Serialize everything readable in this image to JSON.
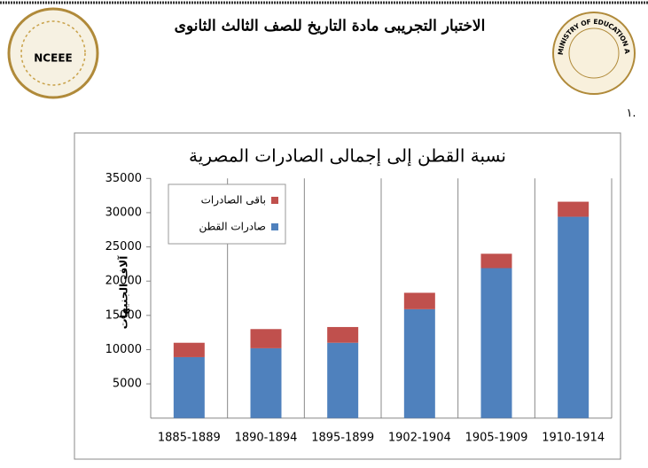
{
  "header": {
    "title": "الاختبار التجريبى مادة التاريخ للصف الثالث الثانوى",
    "left_logo_text": "NCEEE",
    "right_logo_text": "MINISTRY OF EDUCATION AND TECHNICAL EDUCATION"
  },
  "question_number": "١.",
  "chart_data": {
    "type": "stacked_bar",
    "title": "نسبة القطن إلى إجمالى الصادرات المصرية",
    "y_label": "آلاف الجنيهات",
    "categories": [
      "1885-1889",
      "1890-1894",
      "1895-1899",
      "1902-1904",
      "1905-1909",
      "1910-1914"
    ],
    "series": [
      {
        "name": "صادرات القطن",
        "color": "#4f81bd",
        "values": [
          8900,
          10200,
          11000,
          15900,
          21900,
          29400
        ]
      },
      {
        "name": "باقى الصادرات",
        "color": "#c0504d",
        "values": [
          2100,
          2800,
          2300,
          2400,
          2100,
          2200
        ]
      }
    ],
    "ylim": [
      0,
      35000
    ],
    "yticks": [
      5000,
      10000,
      15000,
      20000,
      25000,
      30000,
      35000
    ],
    "legend": "upper left"
  }
}
